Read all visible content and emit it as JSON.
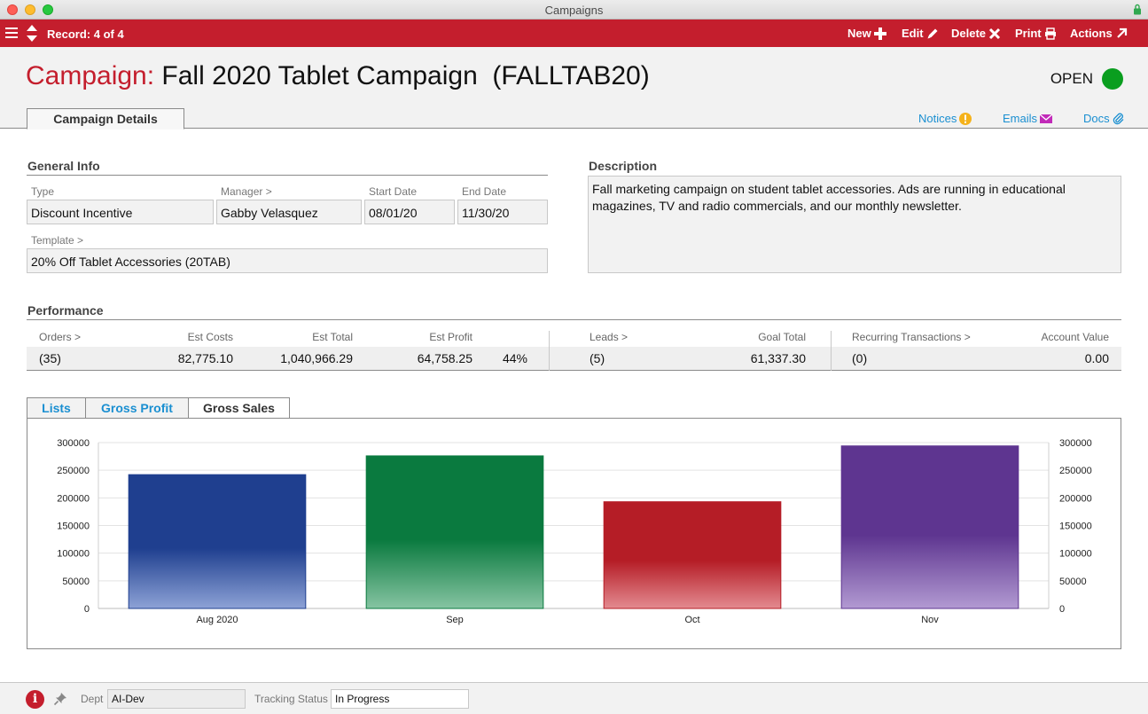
{
  "window": {
    "title": "Campaigns"
  },
  "toolbar": {
    "record_label": "Record: 4 of 4",
    "buttons": [
      {
        "label": "New",
        "icon": "plus-icon"
      },
      {
        "label": "Edit",
        "icon": "pencil-icon"
      },
      {
        "label": "Delete",
        "icon": "x-icon"
      },
      {
        "label": "Print",
        "icon": "printer-icon"
      },
      {
        "label": "Actions",
        "icon": "arrow-out-icon"
      }
    ]
  },
  "header": {
    "label": "Campaign:",
    "title": "Fall 2020 Tablet Campaign  (FALLTAB20)",
    "status": "OPEN",
    "status_color": "#0a9e1f",
    "main_tab": "Campaign Details",
    "links": {
      "notices": "Notices",
      "emails": "Emails",
      "docs": "Docs"
    }
  },
  "general_info": {
    "title": "General Info",
    "type_label": "Type",
    "type_value": "Discount Incentive",
    "manager_label": "Manager >",
    "manager_value": "Gabby Velasquez",
    "start_label": "Start Date",
    "start_value": "08/01/20",
    "end_label": "End Date",
    "end_value": "11/30/20",
    "template_label": "Template >",
    "template_value": "20% Off Tablet Accessories  (20TAB)"
  },
  "description": {
    "title": "Description",
    "text": "Fall marketing campaign on student tablet accessories. Ads are running in educational magazines, TV and radio commercials, and our monthly newsletter."
  },
  "performance": {
    "title": "Performance",
    "orders_label": "Orders >",
    "orders_value": "(35)",
    "est_costs_label": "Est Costs",
    "est_costs_value": "82,775.10",
    "est_total_label": "Est Total",
    "est_total_value": "1,040,966.29",
    "est_profit_label": "Est Profit",
    "est_profit_value": "64,758.25",
    "profit_pct": "44%",
    "leads_label": "Leads >",
    "leads_value": "(5)",
    "goal_label": "Goal Total",
    "goal_value": "61,337.30",
    "recurring_label": "Recurring Transactions >",
    "recurring_value": "(0)",
    "account_label": "Account Value",
    "account_value": "0.00"
  },
  "chart_tabs": {
    "lists": "Lists",
    "gross_profit": "Gross Profit",
    "gross_sales": "Gross Sales"
  },
  "chart_data": {
    "type": "bar",
    "categories": [
      "Aug 2020",
      "Sep",
      "Oct",
      "Nov"
    ],
    "values": [
      242000,
      276000,
      193000,
      294000
    ],
    "colors": [
      "#1f3f8f",
      "#0a7a3f",
      "#b51d26",
      "#5e3590"
    ],
    "light_colors": [
      "#8da2d6",
      "#86c4a2",
      "#e38a90",
      "#b29ad2"
    ],
    "yticks": [
      0,
      50000,
      100000,
      150000,
      200000,
      250000,
      300000
    ],
    "ylim": [
      0,
      300000
    ],
    "grid": true
  },
  "footer": {
    "dept_label": "Dept",
    "dept_value": "AI-Dev",
    "tracking_label": "Tracking Status",
    "tracking_value": "In Progress"
  }
}
